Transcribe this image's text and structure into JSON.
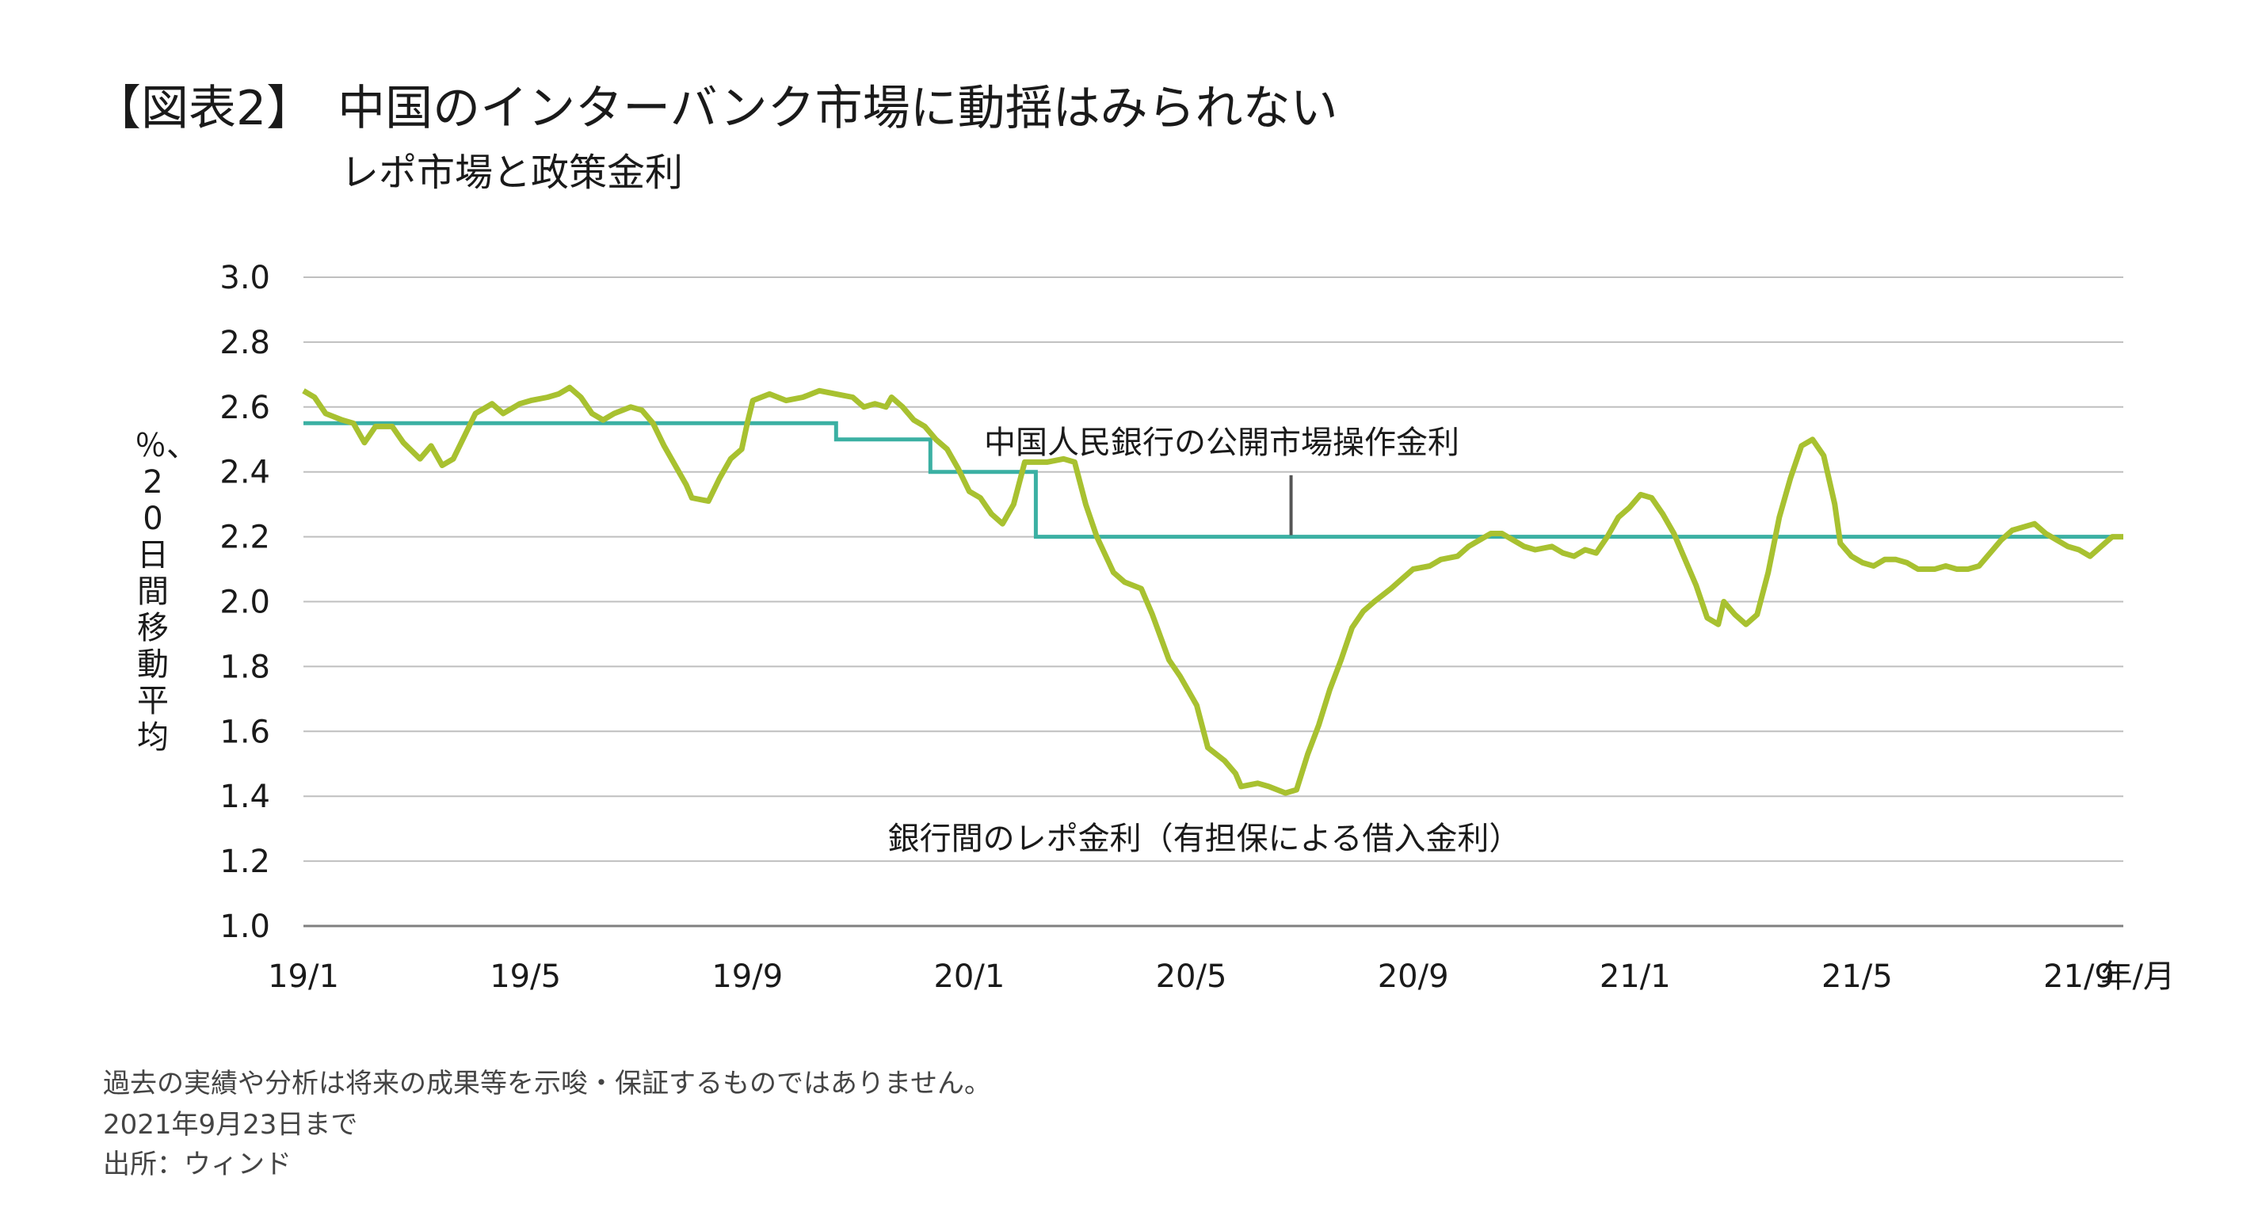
{
  "header": {
    "title": "【図表2】　中国のインターバンク市場に動揺はみられない",
    "subtitle": "レポ市場と政策金利"
  },
  "footer": {
    "disclaimer": "過去の実績や分析は将来の成果等を示唆・保証するものではありません。",
    "as_of": "2021年9月23日まで",
    "source": "出所：ウィンド"
  },
  "colors": {
    "repo": "#a8c130",
    "policy": "#3bb0a3",
    "grid": "#bfbfbf",
    "axis": "#7f7f7f",
    "callout": "#555555"
  },
  "chart_data": {
    "type": "line",
    "title": "レポ市場と政策金利",
    "ylabel": "％、20日間移動平均",
    "xlabel": "年/月",
    "ylim": [
      1.0,
      3.0
    ],
    "yticks": [
      "1.0",
      "1.2",
      "1.4",
      "1.6",
      "1.8",
      "2.0",
      "2.2",
      "2.4",
      "2.6",
      "2.8",
      "3.0"
    ],
    "xticks": [
      "19/1",
      "19/5",
      "19/9",
      "20/1",
      "20/5",
      "20/9",
      "21/1",
      "21/5",
      "21/9"
    ],
    "x_unit": "months since 2019/1",
    "x_range": [
      0,
      32.8
    ],
    "annotations": [
      {
        "text": "中国人民銀行の公開市場操作金利",
        "series": "policy"
      },
      {
        "text": "銀行間のレポ金利（有担保による借入金利）",
        "series": "repo"
      }
    ],
    "series": [
      {
        "name": "中国人民銀行の公開市場操作金利",
        "step": true,
        "points": [
          [
            0,
            2.55
          ],
          [
            9.6,
            2.55
          ],
          [
            9.6,
            2.5
          ],
          [
            11.3,
            2.5
          ],
          [
            11.3,
            2.4
          ],
          [
            13.2,
            2.4
          ],
          [
            13.2,
            2.2
          ],
          [
            32.8,
            2.2
          ]
        ]
      },
      {
        "name": "銀行間のレポ金利（有担保による借入金利）",
        "points": [
          [
            0,
            2.65
          ],
          [
            0.2,
            2.63
          ],
          [
            0.4,
            2.58
          ],
          [
            0.7,
            2.56
          ],
          [
            0.9,
            2.55
          ],
          [
            1.1,
            2.49
          ],
          [
            1.3,
            2.54
          ],
          [
            1.6,
            2.54
          ],
          [
            1.8,
            2.49
          ],
          [
            2.1,
            2.44
          ],
          [
            2.3,
            2.48
          ],
          [
            2.5,
            2.42
          ],
          [
            2.7,
            2.44
          ],
          [
            2.9,
            2.51
          ],
          [
            3.1,
            2.58
          ],
          [
            3.4,
            2.61
          ],
          [
            3.6,
            2.58
          ],
          [
            3.9,
            2.61
          ],
          [
            4.1,
            2.62
          ],
          [
            4.4,
            2.63
          ],
          [
            4.6,
            2.64
          ],
          [
            4.8,
            2.66
          ],
          [
            5.0,
            2.63
          ],
          [
            5.2,
            2.58
          ],
          [
            5.4,
            2.56
          ],
          [
            5.6,
            2.58
          ],
          [
            5.9,
            2.6
          ],
          [
            6.1,
            2.59
          ],
          [
            6.3,
            2.55
          ],
          [
            6.5,
            2.48
          ],
          [
            6.7,
            2.42
          ],
          [
            6.9,
            2.36
          ],
          [
            7.0,
            2.32
          ],
          [
            7.3,
            2.31
          ],
          [
            7.5,
            2.38
          ],
          [
            7.7,
            2.44
          ],
          [
            7.9,
            2.47
          ],
          [
            8.0,
            2.55
          ],
          [
            8.1,
            2.62
          ],
          [
            8.4,
            2.64
          ],
          [
            8.7,
            2.62
          ],
          [
            9.0,
            2.63
          ],
          [
            9.3,
            2.65
          ],
          [
            9.6,
            2.64
          ],
          [
            9.9,
            2.63
          ],
          [
            10.1,
            2.6
          ],
          [
            10.3,
            2.61
          ],
          [
            10.5,
            2.6
          ],
          [
            10.6,
            2.63
          ],
          [
            10.8,
            2.6
          ],
          [
            11.0,
            2.56
          ],
          [
            11.2,
            2.54
          ],
          [
            11.4,
            2.5
          ],
          [
            11.6,
            2.47
          ],
          [
            11.8,
            2.41
          ],
          [
            12.0,
            2.34
          ],
          [
            12.2,
            2.32
          ],
          [
            12.4,
            2.27
          ],
          [
            12.6,
            2.24
          ],
          [
            12.8,
            2.3
          ],
          [
            13.0,
            2.43
          ],
          [
            13.4,
            2.43
          ],
          [
            13.7,
            2.44
          ],
          [
            13.9,
            2.43
          ],
          [
            14.1,
            2.3
          ],
          [
            14.3,
            2.2
          ],
          [
            14.6,
            2.09
          ],
          [
            14.8,
            2.06
          ],
          [
            15.1,
            2.04
          ],
          [
            15.3,
            1.96
          ],
          [
            15.6,
            1.82
          ],
          [
            15.8,
            1.77
          ],
          [
            16.1,
            1.68
          ],
          [
            16.3,
            1.55
          ],
          [
            16.6,
            1.51
          ],
          [
            16.8,
            1.47
          ],
          [
            16.9,
            1.43
          ],
          [
            17.2,
            1.44
          ],
          [
            17.4,
            1.43
          ],
          [
            17.7,
            1.41
          ],
          [
            17.9,
            1.42
          ],
          [
            18.1,
            1.53
          ],
          [
            18.3,
            1.62
          ],
          [
            18.5,
            1.73
          ],
          [
            18.7,
            1.82
          ],
          [
            18.9,
            1.92
          ],
          [
            19.1,
            1.97
          ],
          [
            19.3,
            2.0
          ],
          [
            19.6,
            2.04
          ],
          [
            19.8,
            2.07
          ],
          [
            20.0,
            2.1
          ],
          [
            20.3,
            2.11
          ],
          [
            20.5,
            2.13
          ],
          [
            20.8,
            2.14
          ],
          [
            21.0,
            2.17
          ],
          [
            21.2,
            2.19
          ],
          [
            21.4,
            2.21
          ],
          [
            21.6,
            2.21
          ],
          [
            21.8,
            2.19
          ],
          [
            22.0,
            2.17
          ],
          [
            22.2,
            2.16
          ],
          [
            22.5,
            2.17
          ],
          [
            22.7,
            2.15
          ],
          [
            22.9,
            2.14
          ],
          [
            23.1,
            2.16
          ],
          [
            23.3,
            2.15
          ],
          [
            23.5,
            2.2
          ],
          [
            23.7,
            2.26
          ],
          [
            23.9,
            2.29
          ],
          [
            24.1,
            2.33
          ],
          [
            24.3,
            2.32
          ],
          [
            24.5,
            2.27
          ],
          [
            24.7,
            2.21
          ],
          [
            24.9,
            2.13
          ],
          [
            25.1,
            2.05
          ],
          [
            25.3,
            1.95
          ],
          [
            25.5,
            1.93
          ],
          [
            25.6,
            2.0
          ],
          [
            25.8,
            1.96
          ],
          [
            26.0,
            1.93
          ],
          [
            26.2,
            1.96
          ],
          [
            26.4,
            2.09
          ],
          [
            26.6,
            2.26
          ],
          [
            26.8,
            2.38
          ],
          [
            27.0,
            2.48
          ],
          [
            27.2,
            2.5
          ],
          [
            27.4,
            2.45
          ],
          [
            27.6,
            2.3
          ],
          [
            27.7,
            2.18
          ],
          [
            27.9,
            2.14
          ],
          [
            28.1,
            2.12
          ],
          [
            28.3,
            2.11
          ],
          [
            28.5,
            2.13
          ],
          [
            28.7,
            2.13
          ],
          [
            28.9,
            2.12
          ],
          [
            29.1,
            2.1
          ],
          [
            29.4,
            2.1
          ],
          [
            29.6,
            2.11
          ],
          [
            29.8,
            2.1
          ],
          [
            30.0,
            2.1
          ],
          [
            30.2,
            2.11
          ],
          [
            30.4,
            2.15
          ],
          [
            30.6,
            2.19
          ],
          [
            30.8,
            2.22
          ],
          [
            31.0,
            2.23
          ],
          [
            31.2,
            2.24
          ],
          [
            31.4,
            2.21
          ],
          [
            31.6,
            2.19
          ],
          [
            31.8,
            2.17
          ],
          [
            32.0,
            2.16
          ],
          [
            32.2,
            2.14
          ],
          [
            32.4,
            2.17
          ],
          [
            32.6,
            2.2
          ],
          [
            32.8,
            2.2
          ]
        ]
      }
    ]
  }
}
